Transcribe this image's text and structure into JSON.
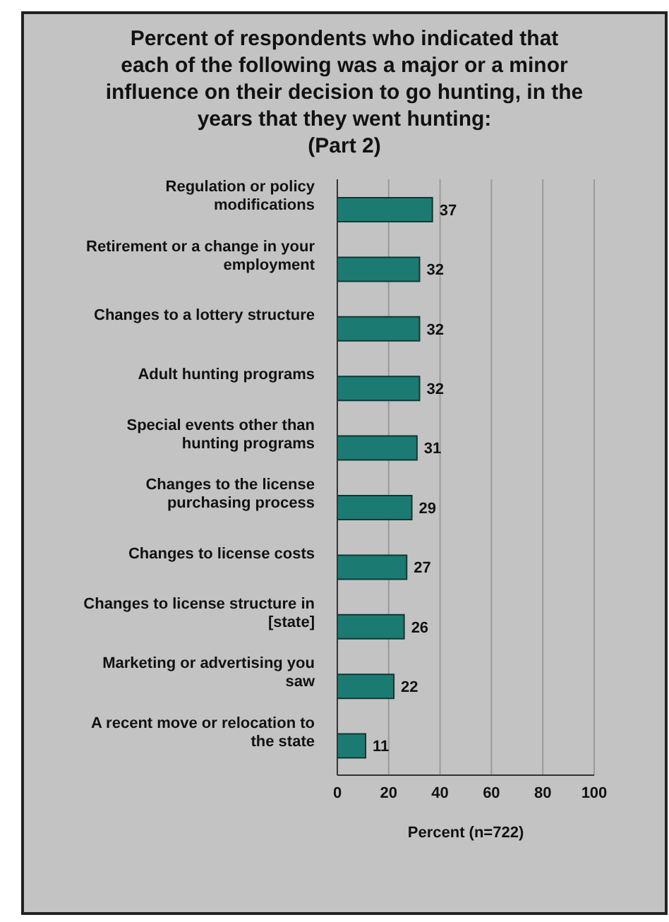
{
  "chart_data": {
    "type": "bar",
    "orientation": "horizontal",
    "title": "Percent of respondents who indicated that each of the following was a major or a minor influence on their decision to go hunting, in the years that they went hunting:",
    "subtitle": "(Part 2)",
    "xlabel": "Percent (n=722)",
    "categories": [
      "Regulation or policy modifications",
      "Retirement or a change in your employment",
      "Changes to a lottery structure",
      "Adult hunting programs",
      "Special events other than hunting programs",
      "Changes to the license purchasing process",
      "Changes to license costs",
      "Changes to license structure in [state]",
      "Marketing or advertising you saw",
      "A recent move or relocation to the state"
    ],
    "values": [
      37,
      32,
      32,
      32,
      31,
      29,
      27,
      26,
      22,
      11
    ],
    "color": "#1b7b72",
    "xlim": [
      0,
      100
    ],
    "xticks": [
      0,
      20,
      40,
      60,
      80,
      100
    ],
    "grid": "x",
    "data_labels": true
  }
}
